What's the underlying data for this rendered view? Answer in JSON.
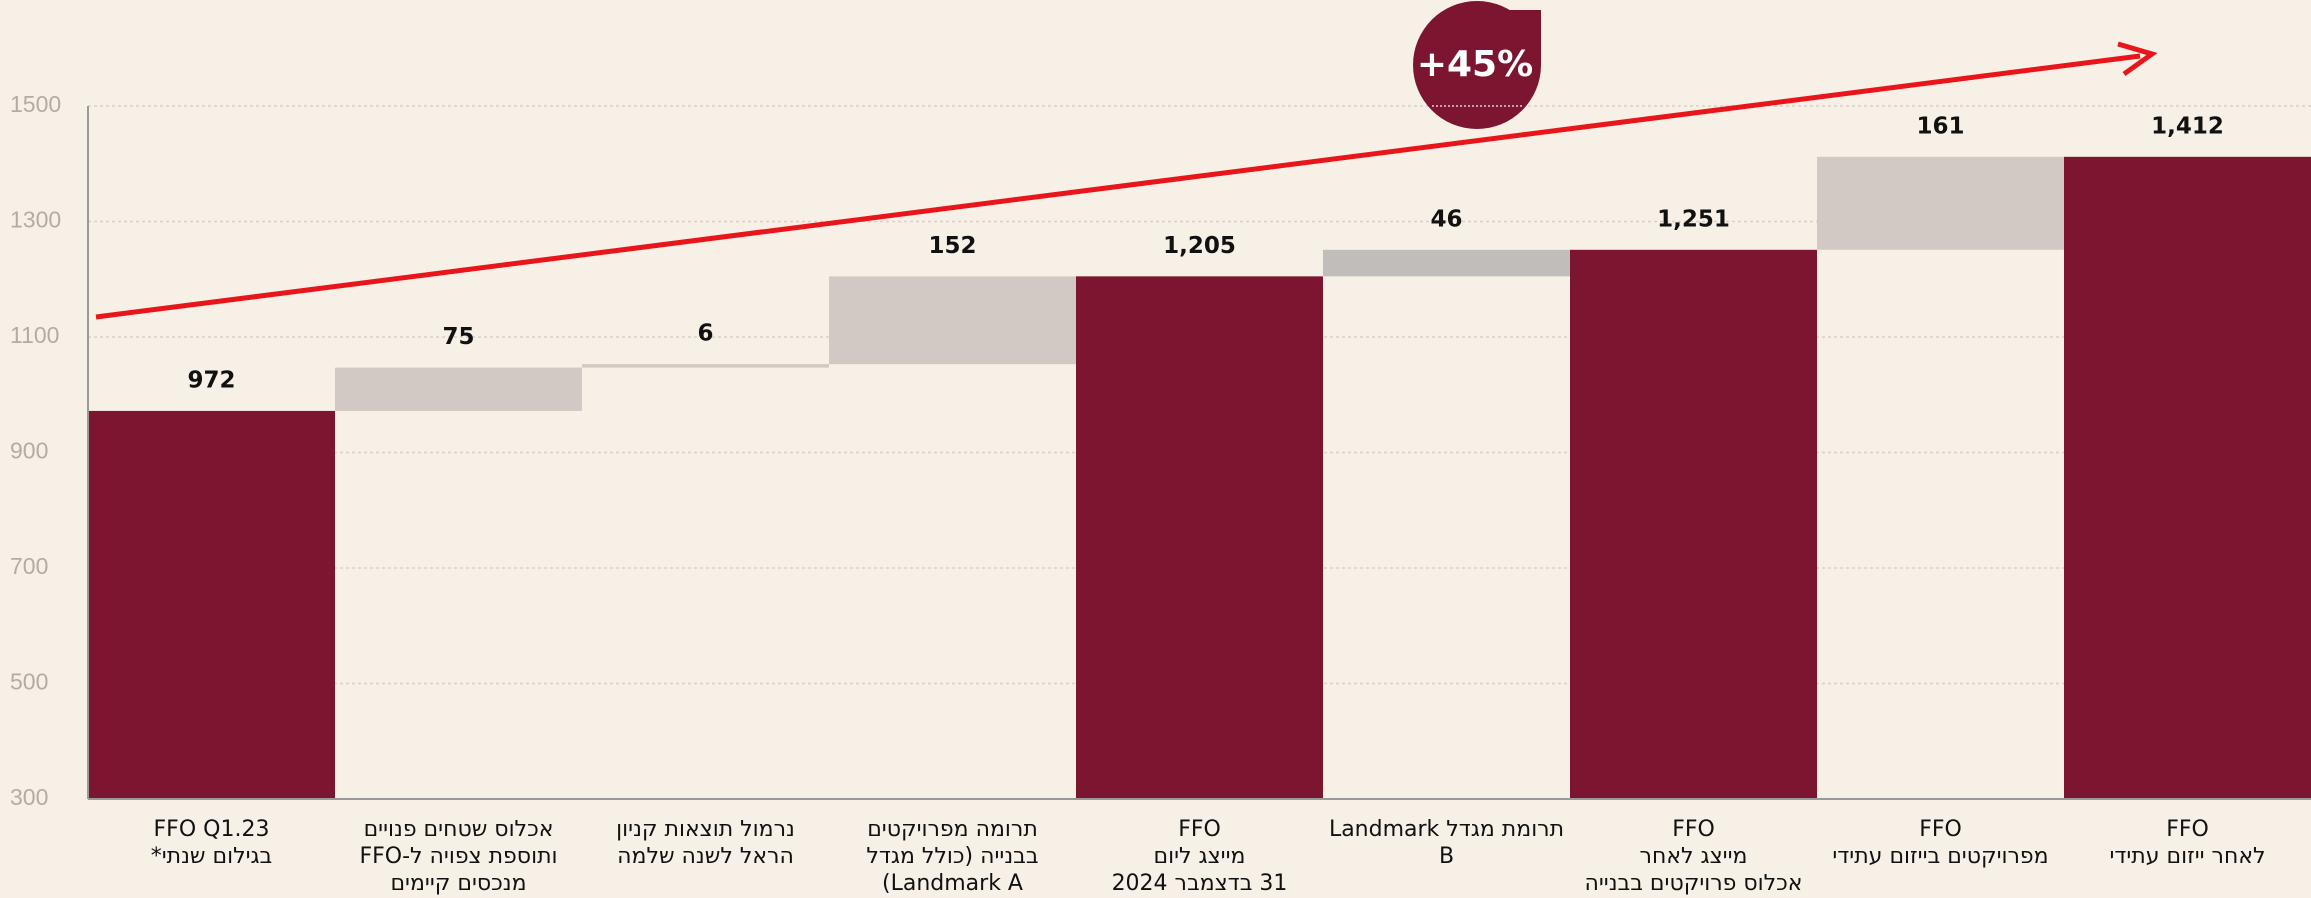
{
  "chart_data": {
    "type": "waterfall",
    "categories": [
      [
        "FFO  Q1.23",
        "בגילום שנתי*"
      ],
      [
        "אכלוס שטחים פנויים",
        "ותוספת צפויה ל-FFO",
        "מנכסים קיימים"
      ],
      [
        "נרמול תוצאות קניון",
        "הראל לשנה שלמה"
      ],
      [
        "תרומה מפרויקטים",
        "בבנייה (כולל מגדל",
        "Landmark A)"
      ],
      [
        "FFO",
        "מייצג ליום",
        "31 בדצמבר 2024"
      ],
      [
        "תרומת מגדל  Landmark",
        "B"
      ],
      [
        "FFO",
        "מייצג לאחר",
        "אכלוס פרויקטים בבנייה"
      ],
      [
        "FFO",
        "מפרויקטים בייזום עתידי"
      ],
      [
        "FFO",
        "לאחר ייזום עתידי"
      ]
    ],
    "values": [
      972,
      75,
      6,
      152,
      1205,
      46,
      1251,
      161,
      1412
    ],
    "value_labels": [
      "972",
      "75",
      "6",
      "152",
      "1,205",
      "46",
      "1,251",
      "161",
      "1,412"
    ],
    "measure": [
      "absolute",
      "relative",
      "relative",
      "relative",
      "absolute",
      "relative",
      "absolute",
      "relative",
      "absolute"
    ],
    "colors": [
      "#7b1530",
      "#d3c9c4",
      "#d3c9c4",
      "#d3c9c4",
      "#7b1530",
      "#c0bdbb",
      "#7b1530",
      "#d3c9c4",
      "#7b1530"
    ],
    "ylim": [
      300,
      1500
    ],
    "yticks": [
      300,
      500,
      700,
      900,
      1100,
      1300,
      1500
    ],
    "grid": true,
    "annotation": "+45%"
  }
}
